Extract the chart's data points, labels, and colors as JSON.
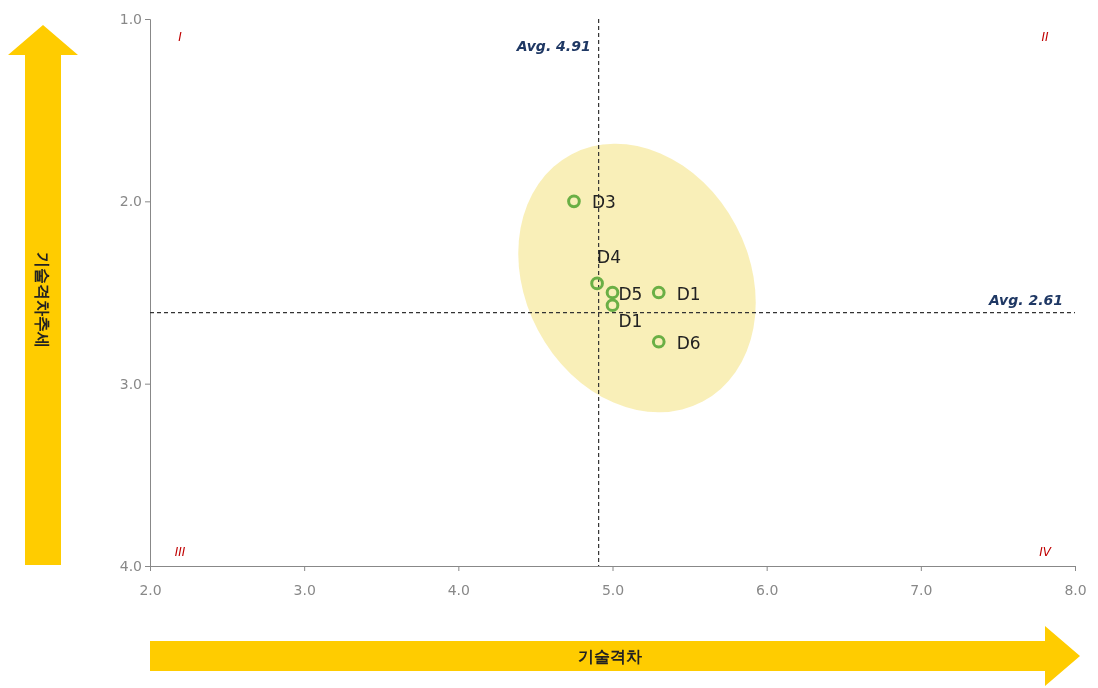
{
  "chart_data": {
    "type": "scatter",
    "xlabel": "기술격차",
    "ylabel": "기술격차추세",
    "series": [
      {
        "color": "#6aaf45",
        "x": [
          4.75,
          4.9,
          5.0,
          5.0,
          5.3,
          5.3
        ],
        "values": [
          2.0,
          2.45,
          2.5,
          2.57,
          2.5,
          2.77
        ]
      }
    ],
    "marker": "circle",
    "grid": false,
    "xlim": [
      2.0,
      8.0
    ],
    "ylim": [
      4.0,
      1.0
    ],
    "xticks": [
      {
        "value": 2,
        "label": "2.0"
      },
      {
        "value": 3,
        "label": "3.0"
      },
      {
        "value": 4,
        "label": "4.0"
      },
      {
        "value": 5,
        "label": "5.0"
      },
      {
        "value": 6,
        "label": "6.0"
      },
      {
        "value": 7,
        "label": "7.0"
      },
      {
        "value": 8,
        "label": "8.0"
      }
    ],
    "yticks": [
      {
        "value": 1,
        "label": "1.0"
      },
      {
        "value": 2,
        "label": "2.0"
      },
      {
        "value": 3,
        "label": "3.0"
      },
      {
        "value": 4,
        "label": "4.0"
      }
    ],
    "ref_lines": [
      {
        "axis": "x",
        "value": 4.91,
        "label": "Avg. 4.91",
        "line_style": "dashed"
      },
      {
        "axis": "y",
        "value": 2.61,
        "label": "Avg. 2.61",
        "line_style": "dashed"
      }
    ],
    "annotations": [
      "I",
      "II",
      "III",
      "IV",
      {
        "text": "D3",
        "x": 4.75,
        "y": 2.0
      },
      {
        "text": "D4",
        "x": 4.9,
        "y": 2.45
      },
      {
        "text": "D5",
        "x": 5.0,
        "y": 2.5
      },
      {
        "text": "D1",
        "x": 5.0,
        "y": 2.57
      },
      {
        "text": "D1",
        "x": 5.3,
        "y": 2.5
      },
      {
        "text": "D6",
        "x": 5.3,
        "y": 2.77
      }
    ]
  }
}
